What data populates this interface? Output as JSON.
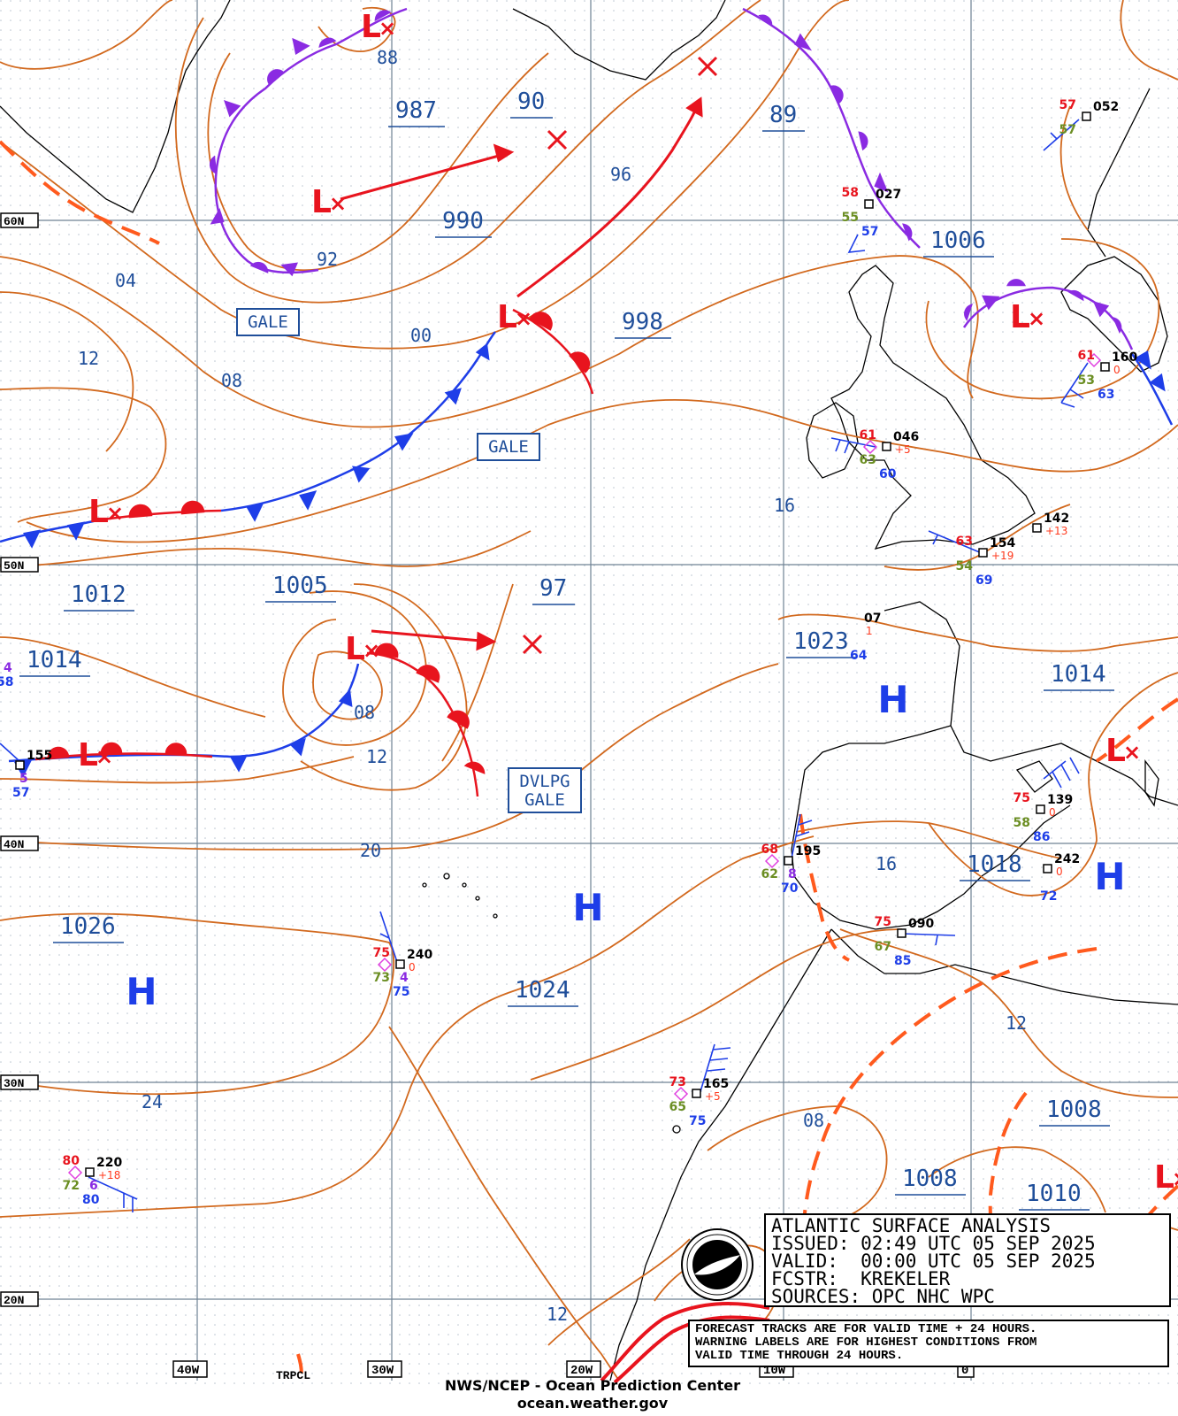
{
  "title_block": {
    "line1": "ATLANTIC SURFACE ANALYSIS",
    "line2": "ISSUED: 02:49 UTC 05 SEP 2025",
    "line3": "VALID:  00:00 UTC 05 SEP 2025",
    "line4": "FCSTR:  KREKELER",
    "line5": "SOURCES: OPC NHC WPC"
  },
  "notes": {
    "line1": "FORECAST TRACKS ARE FOR VALID TIME + 24 HOURS.",
    "line2": "WARNING LABELS ARE FOR HIGHEST CONDITIONS FROM",
    "line3": "VALID TIME THROUGH 24 HOURS."
  },
  "credits": {
    "line1": "NWS/NCEP - Ocean Prediction Center",
    "line2": "ocean.weather.gov"
  },
  "latitude_labels": [
    "60N",
    "50N",
    "40N",
    "30N",
    "20N"
  ],
  "longitude_labels": [
    "40W",
    "30W",
    "20W",
    "10W",
    "0"
  ],
  "pressure_centers": [
    {
      "label": "987"
    },
    {
      "label": "90"
    },
    {
      "label": "89"
    },
    {
      "label": "990"
    },
    {
      "label": "1006"
    },
    {
      "label": "998"
    },
    {
      "label": "1012"
    },
    {
      "label": "1005"
    },
    {
      "label": "97"
    },
    {
      "label": "1023"
    },
    {
      "label": "1014"
    },
    {
      "label": "1014"
    },
    {
      "label": "1018"
    },
    {
      "label": "1026"
    },
    {
      "label": "1024"
    },
    {
      "label": "1008"
    },
    {
      "label": "1008"
    },
    {
      "label": "1010"
    }
  ],
  "isobar_labels": [
    "88",
    "92",
    "96",
    "04",
    "00",
    "12",
    "08",
    "16",
    "08",
    "12",
    "20",
    "16",
    "24",
    "12",
    "08",
    "12"
  ],
  "warnings": [
    "GALE",
    "GALE",
    "DVLPG",
    "GALE"
  ],
  "tropical_label": "TRPCL",
  "high_symbol": "H",
  "low_symbol": "L",
  "stations": [
    {
      "temp": "57",
      "pres": "052",
      "dew": "57"
    },
    {
      "temp": "58",
      "pres": "027",
      "dew": "55",
      "vis": "57"
    },
    {
      "temp": "61",
      "pres": "160",
      "dew": "53",
      "vis": "63",
      "tend": "0"
    },
    {
      "temp": "61",
      "pres": "046",
      "dew": "63",
      "vis": "60",
      "tend": "+5"
    },
    {
      "pres": "142",
      "tend": "+13"
    },
    {
      "temp": "63",
      "pres": "154",
      "dew": "54",
      "vis": "69",
      "tend": "+19"
    },
    {
      "pres": "07",
      "vis": "64",
      "tend": "1"
    },
    {
      "temp": "5",
      "dew": "57",
      "wx": "4",
      "vis": "58"
    },
    {
      "pres": "155",
      "wx": "5",
      "vis": "57"
    },
    {
      "temp": "75",
      "pres": "139",
      "dew": "58",
      "vis": "86",
      "tend": "0"
    },
    {
      "temp": "68",
      "pres": "195",
      "dew": "62",
      "wx": "8",
      "vis": "70"
    },
    {
      "pres": "242",
      "vis": "72",
      "tend": "0"
    },
    {
      "temp": "75",
      "pres": "090",
      "dew": "67",
      "vis": "85"
    },
    {
      "temp": "75",
      "pres": "240",
      "dew": "73",
      "wx": "4",
      "vis": "75",
      "tend": "0"
    },
    {
      "temp": "73",
      "pres": "165",
      "dew": "65",
      "vis": "75",
      "tend": "+5"
    },
    {
      "temp": "80",
      "pres": "220",
      "dew": "72",
      "wx": "6",
      "vis": "80",
      "tend": "+18"
    }
  ],
  "colors": {
    "isobar": "#d2691e",
    "label_blue": "#1f4e9a",
    "cold_front": "#1e3ee8",
    "warm_front": "#e8141e",
    "occluded_front": "#8a2be2",
    "trough": "#ff5a1e",
    "grid": "#7a8fa3"
  }
}
